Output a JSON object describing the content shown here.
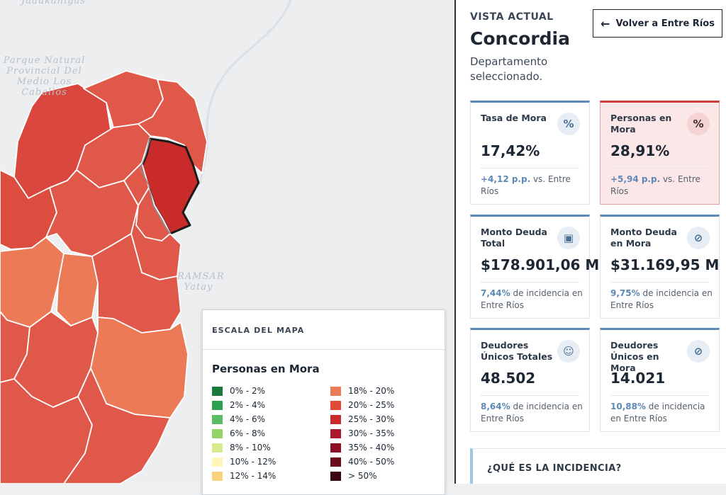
{
  "map": {
    "labels": {
      "top": "Jaaukanigas",
      "park": "Parque Natural Provincial Del Medio Los Caballos",
      "ramsar": "RAMSAR Yatay"
    },
    "selected_department": "Concordia",
    "colors": {
      "land": "#eceef0",
      "river": "#dfe3e6",
      "border_white": "#ffffff",
      "selected_outline": "#1a1a1a"
    }
  },
  "panel": {
    "eyebrow": "VISTA ACTUAL",
    "title": "Concordia",
    "subtitle": "Departamento seleccionado.",
    "back_button": {
      "icon": "arrow-left-icon",
      "label": "Volver a Entre Ríos"
    },
    "cards": [
      {
        "label": "Tasa de Mora",
        "icon": "percent-icon",
        "icon_glyph": "%",
        "value": "17,42%",
        "delta": "+4,12 p.p.",
        "foot": " vs. Entre Ríos",
        "highlight": false
      },
      {
        "label": "Personas en Mora",
        "icon": "percent-icon",
        "icon_glyph": "%",
        "value": "28,91%",
        "delta": "+5,94 p.p.",
        "foot": " vs. Entre Ríos",
        "highlight": true
      },
      {
        "label": "Monto Deuda Total",
        "icon": "money-icon",
        "icon_glyph": "▣",
        "value": "$178.901,06 M",
        "delta": "7,44%",
        "foot": " de incidencia en Entre Ríos",
        "highlight": false
      },
      {
        "label": "Monto Deuda en Mora",
        "icon": "money-off-icon",
        "icon_glyph": "⊘",
        "value": "$31.169,95 M",
        "delta": "9,75%",
        "foot": " de incidencia en Entre Ríos",
        "highlight": false
      },
      {
        "label": "Deudores Únicos Totales",
        "icon": "users-icon",
        "icon_glyph": "☺",
        "value": "48.502",
        "delta": "8,64%",
        "foot": " de incidencia en Entre Ríos",
        "highlight": false
      },
      {
        "label": "Deudores Únicos en Mora",
        "icon": "user-off-icon",
        "icon_glyph": "⊘",
        "value": "14.021",
        "delta": "10,88%",
        "foot": " de incidencia en Entre Ríos",
        "highlight": false
      }
    ],
    "info_heading": "¿QUÉ ES LA INCIDENCIA?"
  },
  "legend": {
    "header": "ESCALA DEL MAPA",
    "title": "Personas en Mora",
    "left": [
      {
        "label": "0% - 2%",
        "color": "#1a7a3e"
      },
      {
        "label": "2% - 4%",
        "color": "#2fa052"
      },
      {
        "label": "4% - 6%",
        "color": "#5cbb63"
      },
      {
        "label": "6% - 8%",
        "color": "#94d26a"
      },
      {
        "label": "8% - 10%",
        "color": "#d6eb8e"
      },
      {
        "label": "10% - 12%",
        "color": "#fff6b8"
      },
      {
        "label": "12% - 14%",
        "color": "#f8d27c"
      }
    ],
    "right": [
      {
        "label": "18% - 20%",
        "color": "#ec7a56"
      },
      {
        "label": "20% - 25%",
        "color": "#e04a37"
      },
      {
        "label": "25% - 30%",
        "color": "#c92a2a"
      },
      {
        "label": "30% - 35%",
        "color": "#a8182f"
      },
      {
        "label": "35% - 40%",
        "color": "#8c0f24"
      },
      {
        "label": "40% - 50%",
        "color": "#6a0a1b"
      },
      {
        "label": "> 50%",
        "color": "#3c0410"
      }
    ]
  }
}
